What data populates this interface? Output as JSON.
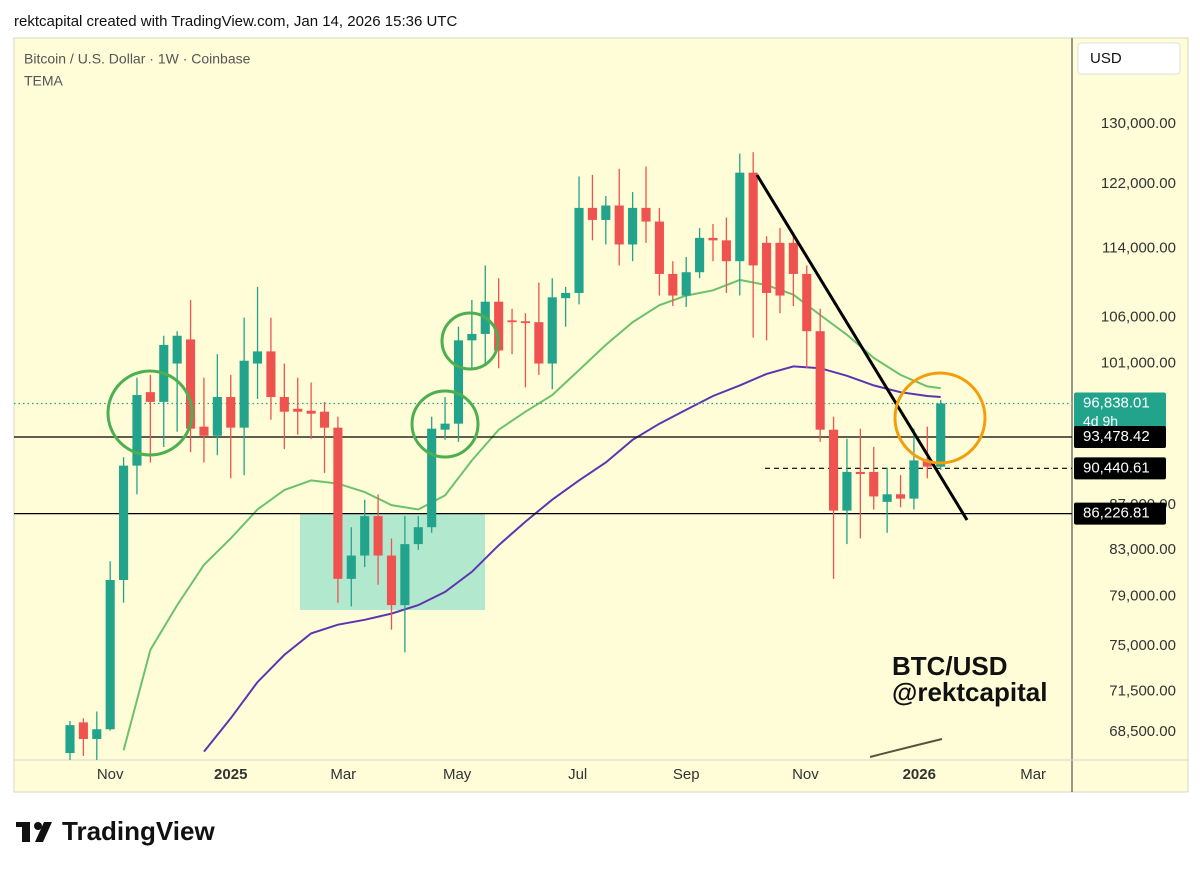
{
  "header": "rektcapital created with TradingView.com, Jan 14, 2026 15:36 UTC",
  "currency_button": "USD",
  "watermark": [
    "BTC/USD",
    "@rektcapital"
  ],
  "brand": "TradingView",
  "chart_data": {
    "type": "candlestick",
    "title": "Bitcoin / U.S. Dollar · 1W · Coinbase",
    "indicator": "TEMA",
    "log_scale": true,
    "xlim": [
      -4.18,
      74.8
    ],
    "xticks": [
      {
        "value": 3,
        "label": "Nov"
      },
      {
        "value": 12,
        "label": "2025"
      },
      {
        "value": 20.4,
        "label": "Mar"
      },
      {
        "value": 28.9,
        "label": "May"
      },
      {
        "value": 37.9,
        "label": "Jul"
      },
      {
        "value": 46,
        "label": "Sep"
      },
      {
        "value": 54.9,
        "label": "Nov"
      },
      {
        "value": 63.4,
        "label": "2026"
      },
      {
        "value": 71.9,
        "label": "Mar"
      }
    ],
    "ylim": [
      66510,
      142330
    ],
    "yticks": [
      {
        "value": 130000,
        "label": "130,000.00"
      },
      {
        "value": 122000,
        "label": "122,000.00"
      },
      {
        "value": 114000,
        "label": "114,000.00"
      },
      {
        "value": 106000,
        "label": "106,000.00"
      },
      {
        "value": 101000,
        "label": "101,000.00"
      },
      {
        "value": 87000,
        "label": "87,000.00"
      },
      {
        "value": 83000,
        "label": "83,000.00"
      },
      {
        "value": 79000,
        "label": "79,000.00"
      },
      {
        "value": 75000,
        "label": "75,000.00"
      },
      {
        "value": 71500,
        "label": "71,500.00"
      },
      {
        "value": 68500,
        "label": "68,500.00"
      }
    ],
    "up_color": "#22a38c",
    "down_color": "#ef5350",
    "open": [
      67000,
      69200,
      68000,
      68700,
      80400,
      90700,
      98000,
      97000,
      101000,
      103600,
      94500,
      93600,
      97500,
      94400,
      101000,
      102300,
      97500,
      96300,
      96100,
      96000,
      94400,
      80500,
      82500,
      86000,
      82500,
      78300,
      83500,
      85000,
      94200,
      94800,
      103500,
      104200,
      107800,
      105700,
      105600,
      105500,
      101000,
      108200,
      108800,
      119000,
      117500,
      119300,
      114500,
      119000,
      117300,
      111000,
      108500,
      111200,
      115300,
      115000,
      112500,
      123500,
      114700,
      114700,
      114700,
      111000,
      104500,
      94200,
      86500,
      90100,
      90100,
      87300,
      88000,
      87600,
      91200,
      90600
    ],
    "high": [
      69300,
      69500,
      70000,
      82000,
      91500,
      99500,
      99800,
      104000,
      104500,
      108000,
      99500,
      102000,
      99800,
      106000,
      109500,
      106000,
      101000,
      99500,
      99000,
      97000,
      95500,
      85000,
      87500,
      88000,
      84000,
      86000,
      86000,
      95500,
      97500,
      105000,
      108000,
      112000,
      110500,
      107000,
      106500,
      110000,
      110500,
      109500,
      123000,
      123200,
      120500,
      124000,
      121000,
      124300,
      119000,
      112500,
      113000,
      116500,
      117000,
      117800,
      126000,
      126200,
      115500,
      116500,
      116000,
      112000,
      107000,
      95500,
      93300,
      94300,
      92500,
      90500,
      89800,
      94300,
      94500,
      97200
    ],
    "low": [
      66500,
      66800,
      66500,
      68600,
      78500,
      88000,
      91000,
      92500,
      94000,
      92000,
      91000,
      91700,
      89500,
      89800,
      97300,
      95200,
      92300,
      93700,
      93300,
      90000,
      78500,
      78200,
      81500,
      80000,
      76300,
      74500,
      83000,
      84500,
      93200,
      93000,
      100500,
      101000,
      100500,
      102000,
      98500,
      99800,
      98300,
      105000,
      107500,
      115000,
      114500,
      112000,
      112500,
      114700,
      108500,
      107300,
      107200,
      110500,
      112500,
      108800,
      108500,
      103800,
      103500,
      106500,
      107300,
      100500,
      93000,
      80500,
      83500,
      84000,
      86600,
      84500,
      86800,
      86600,
      89500,
      90300
    ],
    "close": [
      69000,
      68000,
      68700,
      80400,
      90700,
      97700,
      97000,
      103000,
      104000,
      94300,
      93600,
      97500,
      94400,
      101300,
      102300,
      97500,
      96000,
      96000,
      95800,
      94400,
      80500,
      82500,
      86000,
      82500,
      78300,
      83500,
      85000,
      94300,
      94800,
      103500,
      104200,
      107800,
      102400,
      105500,
      105400,
      101000,
      108300,
      108800,
      119000,
      117500,
      119300,
      114500,
      119000,
      117300,
      111000,
      108500,
      111200,
      115300,
      115000,
      112500,
      123500,
      112000,
      108800,
      108500,
      111000,
      104500,
      94200,
      86500,
      90100,
      89900,
      87800,
      88000,
      87600,
      91200,
      90600,
      96838.01
    ],
    "lines": [
      {
        "color": "#6cc26c",
        "x": [
          4,
          6,
          8,
          10,
          12,
          14,
          16,
          18,
          20,
          22,
          24,
          26,
          28,
          30,
          32,
          34,
          36,
          38,
          40,
          42,
          44,
          46,
          48,
          50,
          52,
          54,
          56,
          58,
          60,
          62,
          64,
          65
        ],
        "values": [
          67200,
          74700,
          78300,
          81700,
          84000,
          86600,
          88400,
          89300,
          89000,
          88200,
          87000,
          86600,
          87900,
          91200,
          94200,
          96000,
          97700,
          100300,
          103000,
          105500,
          107400,
          108500,
          109100,
          110300,
          109700,
          108600,
          106300,
          104100,
          101600,
          99800,
          98600,
          98400
        ]
      },
      {
        "color": "#5e35b1",
        "x": [
          10,
          12,
          14,
          16,
          18,
          20,
          22,
          24,
          26,
          28,
          30,
          32,
          34,
          36,
          38,
          40,
          42,
          44,
          46,
          48,
          50,
          52,
          54,
          56,
          58,
          60,
          62,
          64,
          65
        ],
        "values": [
          67100,
          69500,
          72200,
          74300,
          76000,
          76700,
          77100,
          77600,
          78300,
          79400,
          81100,
          83400,
          85500,
          87500,
          89300,
          91000,
          93200,
          94800,
          96200,
          97600,
          98700,
          99900,
          100700,
          100500,
          99700,
          98700,
          98000,
          97600,
          97500
        ]
      }
    ],
    "levels": [
      {
        "value": 96838.01,
        "label": "96,838.01",
        "countdown": "4d 9h",
        "color": "#22a38c",
        "style": "dotted"
      },
      {
        "value": 93478.42,
        "label": "93,478.42",
        "color": "#000000",
        "style": "solid"
      },
      {
        "value": 90440.61,
        "label": "90,440.61",
        "color": "#000000",
        "style": "dashed"
      },
      {
        "value": 86226.81,
        "label": "86,226.81",
        "color": "#000000",
        "style": "solid"
      }
    ]
  }
}
